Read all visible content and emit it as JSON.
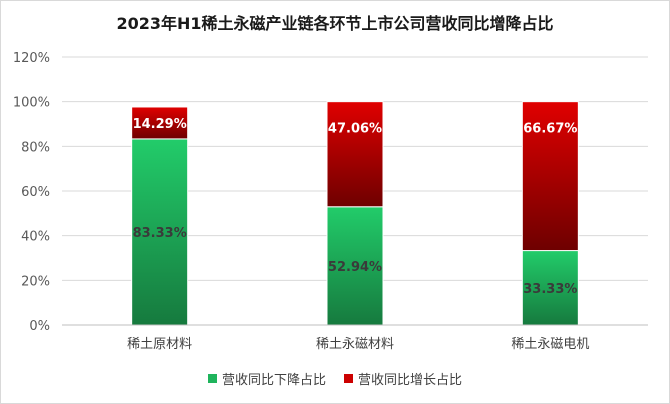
{
  "chart_data": {
    "type": "bar",
    "stacked": true,
    "percent_stacked": true,
    "title": "2023年H1稀土永磁产业链各环节上市公司营收同比增降占比",
    "categories": [
      "稀土原材料",
      "稀土永磁材料",
      "稀土永磁电机"
    ],
    "series": [
      {
        "name": "营收同比下降占比",
        "values": [
          83.33,
          52.94,
          33.33
        ],
        "labels": [
          "83.33%",
          "52.94%",
          "33.33%"
        ],
        "color": "#1fb45c"
      },
      {
        "name": "营收同比增长占比",
        "values": [
          14.29,
          47.06,
          66.67
        ],
        "labels": [
          "14.29%",
          "47.06%",
          "66.67%"
        ],
        "color": "#cc0000"
      }
    ],
    "yticks": [
      "0%",
      "20%",
      "40%",
      "60%",
      "80%",
      "100%",
      "120%"
    ],
    "ylim": [
      0,
      120
    ],
    "grid": true,
    "legend": "bottom"
  }
}
